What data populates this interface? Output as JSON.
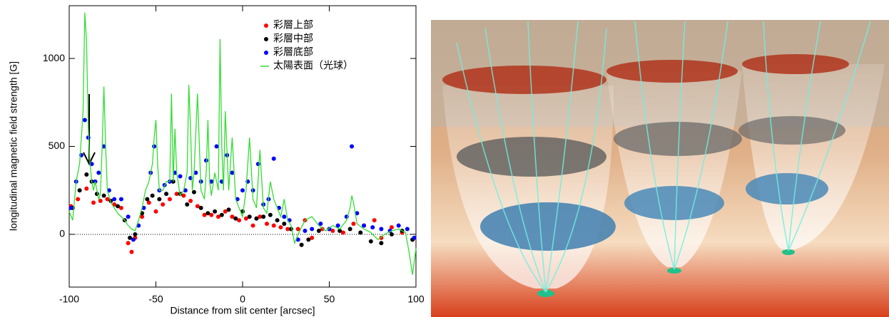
{
  "chart_data": {
    "type": "scatter",
    "xlabel": "Distance from slit center [arcsec]",
    "ylabel": "longitudinal magnetic field strength [G]",
    "xlim": [
      -100,
      100
    ],
    "xticks": [
      -100,
      -50,
      0,
      50,
      100
    ],
    "ylim": [
      -300,
      1300
    ],
    "yticks": [
      0,
      500,
      1000
    ],
    "legend": "upper right",
    "series": [
      {
        "name": "彩層上部",
        "type": "scatter",
        "color": "#ff0000",
        "x": [
          -99,
          -95,
          -90,
          -86,
          -82,
          -78,
          -74,
          -70,
          -66,
          -64,
          -62,
          -58,
          -54,
          -50,
          -46,
          -42,
          -38,
          -34,
          -30,
          -26,
          -22,
          -18,
          -14,
          -10,
          -6,
          -2,
          2,
          6,
          10,
          14,
          18,
          22,
          26,
          32,
          36,
          40,
          46,
          52,
          58,
          64,
          70,
          76,
          80,
          86,
          92,
          98
        ],
        "values": [
          160,
          200,
          260,
          180,
          190,
          200,
          170,
          150,
          -50,
          -100,
          -20,
          100,
          180,
          130,
          170,
          200,
          230,
          220,
          190,
          160,
          110,
          110,
          100,
          130,
          100,
          80,
          90,
          50,
          100,
          60,
          50,
          40,
          30,
          30,
          80,
          -20,
          30,
          20,
          10,
          60,
          50,
          80,
          -20,
          40,
          10,
          -30
        ]
      },
      {
        "name": "彩層中部",
        "type": "scatter",
        "color": "#000000",
        "x": [
          -98,
          -94,
          -90,
          -87,
          -84,
          -80,
          -76,
          -72,
          -68,
          -65,
          -62,
          -58,
          -55,
          -52,
          -48,
          -44,
          -40,
          -36,
          -32,
          -28,
          -24,
          -20,
          -16,
          -12,
          -8,
          -4,
          0,
          4,
          8,
          12,
          16,
          20,
          24,
          28,
          34,
          38,
          44,
          50,
          56,
          62,
          68,
          74,
          80,
          86,
          92,
          98
        ],
        "values": [
          150,
          250,
          340,
          300,
          230,
          220,
          190,
          160,
          80,
          -20,
          0,
          120,
          200,
          220,
          200,
          230,
          300,
          230,
          170,
          240,
          150,
          120,
          130,
          110,
          140,
          90,
          130,
          100,
          90,
          100,
          110,
          80,
          60,
          30,
          -60,
          -30,
          20,
          30,
          20,
          30,
          10,
          -40,
          -50,
          0,
          20,
          -30
        ]
      },
      {
        "name": "彩層底部",
        "type": "scatter",
        "color": "#0000ff",
        "x": [
          -99,
          -96,
          -93,
          -91,
          -89,
          -87,
          -85,
          -83,
          -80,
          -77,
          -74,
          -70,
          -66,
          -63,
          -60,
          -57,
          -53,
          -51,
          -48,
          -45,
          -42,
          -39,
          -36,
          -33,
          -30,
          -27,
          -24,
          -21,
          -18,
          -15,
          -12,
          -9,
          -6,
          -3,
          0,
          3,
          6,
          9,
          12,
          15,
          18,
          21,
          24,
          27,
          32,
          36,
          40,
          45,
          50,
          55,
          60,
          63,
          66,
          70,
          75,
          80,
          85,
          90,
          95,
          99
        ],
        "values": [
          150,
          300,
          450,
          650,
          550,
          400,
          300,
          350,
          500,
          250,
          200,
          200,
          100,
          -30,
          50,
          150,
          350,
          500,
          250,
          280,
          300,
          350,
          330,
          250,
          320,
          350,
          300,
          420,
          300,
          500,
          300,
          450,
          350,
          200,
          250,
          300,
          250,
          400,
          170,
          200,
          430,
          150,
          100,
          80,
          -30,
          20,
          30,
          60,
          30,
          50,
          100,
          500,
          120,
          50,
          40,
          30,
          20,
          50,
          30,
          -20
        ]
      },
      {
        "name": "太陽表面（光球）",
        "type": "line",
        "color": "#33dd33",
        "x": [
          -100,
          -98,
          -96,
          -94,
          -92,
          -91,
          -90,
          -89,
          -88,
          -87,
          -86,
          -85,
          -84,
          -83,
          -82,
          -81,
          -80,
          -79,
          -78,
          -76,
          -74,
          -72,
          -70,
          -68,
          -66,
          -64,
          -62,
          -60,
          -58,
          -56,
          -54,
          -52,
          -51,
          -50,
          -49,
          -48,
          -46,
          -44,
          -42,
          -41,
          -40,
          -39,
          -38,
          -36,
          -34,
          -32,
          -31,
          -30,
          -29,
          -28,
          -26,
          -24,
          -22,
          -21,
          -20,
          -19,
          -18,
          -16,
          -14,
          -13,
          -12,
          -11,
          -10,
          -8,
          -6,
          -4,
          -2,
          0,
          2,
          4,
          6,
          8,
          10,
          12,
          14,
          16,
          18,
          20,
          22,
          24,
          26,
          28,
          30,
          32,
          34,
          36,
          40,
          44,
          48,
          52,
          56,
          60,
          62,
          63,
          64,
          65,
          66,
          70,
          74,
          78,
          82,
          86,
          90,
          94,
          96,
          98,
          100
        ],
        "values": [
          130,
          80,
          300,
          400,
          700,
          1260,
          1100,
          600,
          400,
          300,
          250,
          300,
          250,
          200,
          230,
          500,
          840,
          500,
          250,
          180,
          150,
          120,
          100,
          80,
          50,
          30,
          20,
          80,
          150,
          250,
          300,
          400,
          550,
          650,
          400,
          250,
          250,
          300,
          300,
          800,
          300,
          600,
          350,
          220,
          250,
          350,
          850,
          600,
          250,
          350,
          800,
          250,
          200,
          350,
          650,
          300,
          220,
          350,
          250,
          1110,
          500,
          250,
          700,
          250,
          550,
          200,
          150,
          100,
          250,
          550,
          200,
          150,
          480,
          150,
          120,
          300,
          200,
          150,
          100,
          200,
          80,
          50,
          -50,
          0,
          40,
          80,
          100,
          50,
          20,
          50,
          30,
          80,
          150,
          220,
          180,
          120,
          60,
          30,
          10,
          -30,
          0,
          20,
          30,
          10,
          -100,
          -230,
          -80
        ]
      }
    ]
  }
}
